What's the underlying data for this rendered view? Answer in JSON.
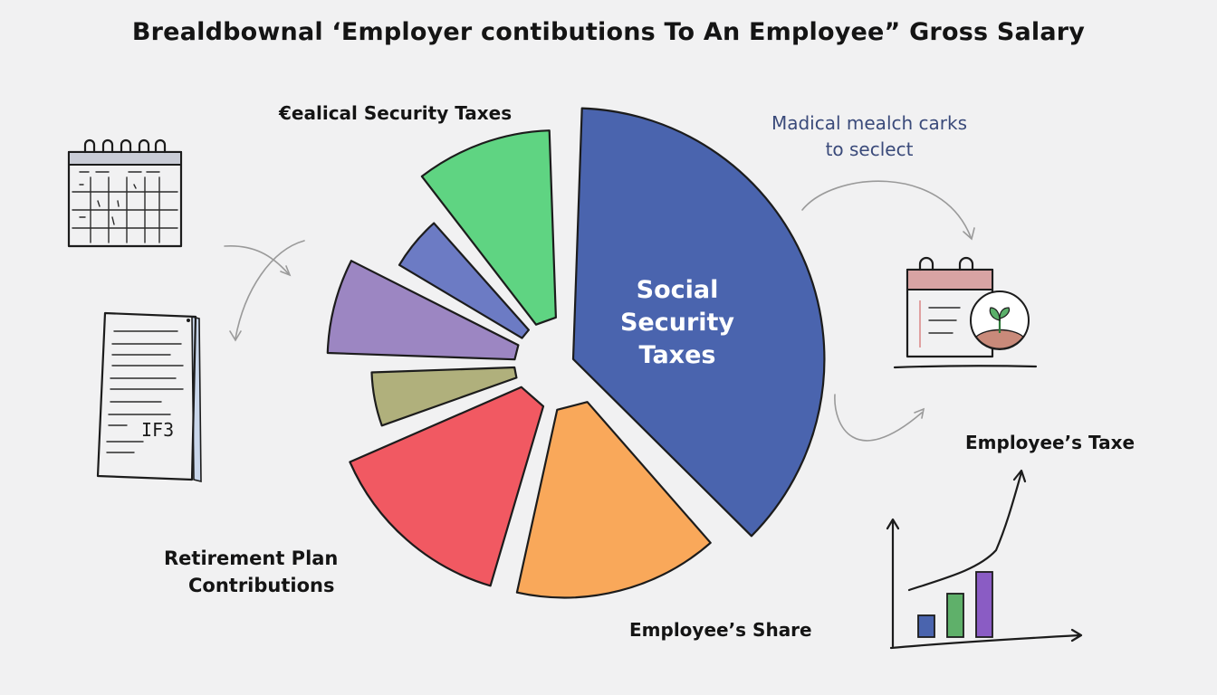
{
  "chart_data": {
    "type": "pie",
    "title": "Brealdbownal ‘Employer contibutions To An Employee” Gross Salary",
    "slices": [
      {
        "label": "Social Security Taxes",
        "value": 38,
        "color": "#4a64ae"
      },
      {
        "label": "Employee’s Share",
        "value": 16,
        "color": "#f9a85a"
      },
      {
        "label": "Retirement Plan Contributions",
        "value": 15,
        "color": "#f15962"
      },
      {
        "label": "",
        "value": 6,
        "color": "#b0b07c"
      },
      {
        "label": "",
        "value": 8,
        "color": "#9c86c2"
      },
      {
        "label": "",
        "value": 6,
        "color": "#6c7bc4"
      },
      {
        "label": "",
        "value": 11,
        "color": "#5fd482"
      }
    ],
    "annotations": [
      "Ealical Security Taxes",
      "Madical mealch carks to seclect",
      "Employee’s Taxe"
    ]
  },
  "labels": {
    "medical": "€ealical Security Taxes",
    "note_line1": "Madical mealch carks",
    "note_line2": "to seclect",
    "slice_line1": "Social",
    "slice_line2": "Security",
    "slice_line3": "Taxes",
    "employee_taxe": "Employee’s Taxe",
    "retirement_line1": "Retirement  Plan",
    "retirement_line2": "Contributions",
    "share": "Employee’s Share"
  },
  "doodles": {
    "calendar_icon": "calendar-icon",
    "document_icon": "document-icon",
    "document_text": "IF3",
    "planner_icon": "planner-plant-icon",
    "bar_chart": {
      "type": "bar",
      "values": [
        1,
        2,
        3
      ],
      "colors": [
        "#4a64ae",
        "#5fb06a",
        "#8a5cc4"
      ]
    }
  }
}
